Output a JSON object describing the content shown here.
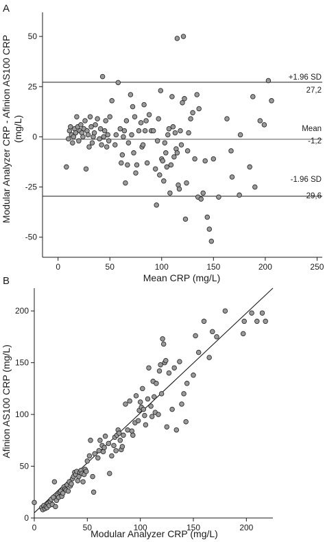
{
  "chart_data": [
    {
      "type": "scatter",
      "panel": "A",
      "xlabel": "Mean CRP (mg/L)",
      "ylabel": "Modular Analyzer CRP - Afinion AS100 CRP (mg/L)",
      "ylabel_lines": [
        "Modular Analyzer CRP - Afinion AS100 CRP",
        "(mg/L)"
      ],
      "xlim": [
        -15,
        255
      ],
      "ylim": [
        -60,
        62
      ],
      "xticks": [
        0,
        50,
        100,
        150,
        200,
        250
      ],
      "yticks": [
        50,
        25,
        0,
        -25,
        -50
      ],
      "grid": false,
      "reference_lines": [
        {
          "name": "+1.96 SD",
          "value": 27.2,
          "value_label": "27,2"
        },
        {
          "name": "Mean",
          "value": -1.2,
          "value_label": "-1,2"
        },
        {
          "name": "-1.96 SD",
          "value": -29.6,
          "value_label": "-29,6"
        }
      ],
      "points": [
        [
          8,
          -15
        ],
        [
          10,
          -1
        ],
        [
          11,
          3
        ],
        [
          12,
          5
        ],
        [
          13,
          1
        ],
        [
          14,
          -3
        ],
        [
          15,
          0
        ],
        [
          16,
          4
        ],
        [
          17,
          2
        ],
        [
          18,
          10
        ],
        [
          19,
          5
        ],
        [
          20,
          -2
        ],
        [
          21,
          3
        ],
        [
          22,
          6
        ],
        [
          23,
          2
        ],
        [
          24,
          0
        ],
        [
          25,
          4
        ],
        [
          26,
          8
        ],
        [
          27,
          -16
        ],
        [
          28,
          3
        ],
        [
          29,
          1
        ],
        [
          30,
          -5
        ],
        [
          31,
          10
        ],
        [
          32,
          5
        ],
        [
          33,
          -3
        ],
        [
          34,
          0
        ],
        [
          35,
          2
        ],
        [
          36,
          6
        ],
        [
          38,
          9
        ],
        [
          40,
          -1
        ],
        [
          41,
          4
        ],
        [
          42,
          -4
        ],
        [
          43,
          30
        ],
        [
          44,
          0
        ],
        [
          45,
          3
        ],
        [
          46,
          8
        ],
        [
          47,
          -5
        ],
        [
          48,
          1
        ],
        [
          49,
          -2
        ],
        [
          50,
          10
        ],
        [
          52,
          18
        ],
        [
          55,
          -4
        ],
        [
          56,
          1
        ],
        [
          58,
          27
        ],
        [
          60,
          4
        ],
        [
          61,
          -13
        ],
        [
          62,
          -9
        ],
        [
          63,
          0
        ],
        [
          64,
          3
        ],
        [
          65,
          -23
        ],
        [
          66,
          8
        ],
        [
          67,
          -14
        ],
        [
          68,
          -3
        ],
        [
          70,
          21
        ],
        [
          71,
          1
        ],
        [
          72,
          15
        ],
        [
          73,
          -8
        ],
        [
          74,
          10
        ],
        [
          75,
          -18
        ],
        [
          76,
          -14
        ],
        [
          78,
          3
        ],
        [
          80,
          7
        ],
        [
          81,
          -5
        ],
        [
          82,
          -4
        ],
        [
          83,
          16
        ],
        [
          84,
          3
        ],
        [
          85,
          8
        ],
        [
          86,
          -13
        ],
        [
          88,
          11
        ],
        [
          90,
          3
        ],
        [
          92,
          3
        ],
        [
          94,
          -16
        ],
        [
          95,
          -34
        ],
        [
          96,
          -2
        ],
        [
          97,
          9
        ],
        [
          98,
          -19
        ],
        [
          99,
          23
        ],
        [
          100,
          -11
        ],
        [
          101,
          -12
        ],
        [
          102,
          -22
        ],
        [
          103,
          -3
        ],
        [
          104,
          -8
        ],
        [
          105,
          -15
        ],
        [
          106,
          1
        ],
        [
          107,
          4
        ],
        [
          108,
          -28
        ],
        [
          109,
          -14
        ],
        [
          110,
          20
        ],
        [
          111,
          5
        ],
        [
          112,
          -10
        ],
        [
          113,
          2
        ],
        [
          114,
          -6
        ],
        [
          115,
          -8
        ],
        [
          116,
          -24
        ],
        [
          117,
          -26
        ],
        [
          118,
          3
        ],
        [
          119,
          -4
        ],
        [
          120,
          17
        ],
        [
          121,
          50
        ],
        [
          122,
          19
        ],
        [
          123,
          -41
        ],
        [
          124,
          -23
        ],
        [
          125,
          -7
        ],
        [
          126,
          2
        ],
        [
          128,
          9
        ],
        [
          130,
          12
        ],
        [
          132,
          -11
        ],
        [
          134,
          21
        ],
        [
          135,
          -30
        ],
        [
          136,
          14
        ],
        [
          138,
          -31
        ],
        [
          140,
          -28
        ],
        [
          142,
          -12
        ],
        [
          144,
          -40
        ],
        [
          146,
          -46
        ],
        [
          148,
          -52
        ],
        [
          150,
          -11
        ],
        [
          155,
          -30
        ],
        [
          163,
          9
        ],
        [
          167,
          -7
        ],
        [
          168,
          -20
        ],
        [
          175,
          -29
        ],
        [
          176,
          1
        ],
        [
          185,
          -15
        ],
        [
          188,
          20
        ],
        [
          190,
          -25
        ],
        [
          195,
          8
        ],
        [
          199,
          6
        ],
        [
          203,
          28
        ],
        [
          206,
          18
        ],
        [
          115,
          49
        ]
      ]
    },
    {
      "type": "scatter",
      "panel": "B",
      "xlabel": "Modular Analyzer CRP (mg/L)",
      "ylabel": "Afinion AS100 CRP (mg/L)",
      "xlim": [
        0,
        225
      ],
      "ylim": [
        0,
        222
      ],
      "xticks": [
        0,
        50,
        100,
        150,
        200
      ],
      "yticks": [
        0,
        50,
        100,
        150,
        200
      ],
      "grid": false,
      "fit_line": {
        "from": [
          0,
          5
        ],
        "to": [
          225,
          222
        ]
      },
      "points": [
        [
          0,
          15
        ],
        [
          7,
          10
        ],
        [
          8,
          8
        ],
        [
          9,
          12
        ],
        [
          10,
          9
        ],
        [
          11,
          11
        ],
        [
          12,
          10
        ],
        [
          13,
          14
        ],
        [
          14,
          12
        ],
        [
          15,
          16
        ],
        [
          16,
          18
        ],
        [
          17,
          13
        ],
        [
          18,
          20
        ],
        [
          19,
          35
        ],
        [
          20,
          11
        ],
        [
          21,
          17
        ],
        [
          22,
          22
        ],
        [
          23,
          20
        ],
        [
          24,
          25
        ],
        [
          25,
          26
        ],
        [
          26,
          21
        ],
        [
          27,
          24
        ],
        [
          28,
          30
        ],
        [
          29,
          28
        ],
        [
          30,
          27
        ],
        [
          31,
          32
        ],
        [
          32,
          26
        ],
        [
          33,
          35
        ],
        [
          34,
          31
        ],
        [
          35,
          33
        ],
        [
          36,
          38
        ],
        [
          37,
          40
        ],
        [
          38,
          44
        ],
        [
          39,
          42
        ],
        [
          40,
          45
        ],
        [
          41,
          36
        ],
        [
          42,
          40
        ],
        [
          43,
          44
        ],
        [
          44,
          46
        ],
        [
          45,
          43
        ],
        [
          46,
          35
        ],
        [
          47,
          42
        ],
        [
          48,
          47
        ],
        [
          49,
          45
        ],
        [
          50,
          55
        ],
        [
          52,
          60
        ],
        [
          53,
          75
        ],
        [
          55,
          40
        ],
        [
          56,
          25
        ],
        [
          57,
          62
        ],
        [
          60,
          58
        ],
        [
          61,
          65
        ],
        [
          62,
          75
        ],
        [
          64,
          70
        ],
        [
          65,
          64
        ],
        [
          66,
          68
        ],
        [
          67,
          79
        ],
        [
          70,
          72
        ],
        [
          71,
          43
        ],
        [
          73,
          60
        ],
        [
          75,
          70
        ],
        [
          76,
          78
        ],
        [
          77,
          65
        ],
        [
          78,
          80
        ],
        [
          79,
          85
        ],
        [
          80,
          82
        ],
        [
          81,
          75
        ],
        [
          82,
          66
        ],
        [
          83,
          69
        ],
        [
          84,
          80
        ],
        [
          86,
          110
        ],
        [
          88,
          85
        ],
        [
          90,
          113
        ],
        [
          92,
          84
        ],
        [
          93,
          80
        ],
        [
          95,
          92
        ],
        [
          96,
          118
        ],
        [
          98,
          94
        ],
        [
          99,
          104
        ],
        [
          100,
          112
        ],
        [
          101,
          107
        ],
        [
          102,
          125
        ],
        [
          103,
          105
        ],
        [
          104,
          99
        ],
        [
          105,
          90
        ],
        [
          107,
          115
        ],
        [
          108,
          145
        ],
        [
          110,
          108
        ],
        [
          111,
          98
        ],
        [
          112,
          132
        ],
        [
          113,
          117
        ],
        [
          114,
          102
        ],
        [
          115,
          130
        ],
        [
          117,
          100
        ],
        [
          118,
          142
        ],
        [
          119,
          148
        ],
        [
          120,
          120
        ],
        [
          121,
          173
        ],
        [
          122,
          168
        ],
        [
          123,
          150
        ],
        [
          124,
          152
        ],
        [
          125,
          88
        ],
        [
          127,
          140
        ],
        [
          130,
          105
        ],
        [
          132,
          145
        ],
        [
          134,
          85
        ],
        [
          137,
          151
        ],
        [
          139,
          110
        ],
        [
          141,
          120
        ],
        [
          143,
          93
        ],
        [
          144,
          130
        ],
        [
          150,
          138
        ],
        [
          152,
          176
        ],
        [
          155,
          160
        ],
        [
          160,
          190
        ],
        [
          165,
          155
        ],
        [
          168,
          180
        ],
        [
          172,
          175
        ],
        [
          180,
          200
        ],
        [
          197,
          178
        ],
        [
          198,
          190
        ],
        [
          205,
          198
        ],
        [
          210,
          190
        ],
        [
          215,
          198
        ],
        [
          218,
          190
        ]
      ]
    }
  ],
  "panels": {
    "a": {
      "letter": "A",
      "ylabel_line1": "Modular Analyzer CRP - Afinion AS100 CRP",
      "ylabel_line2": "(mg/L)",
      "xlabel": "Mean CRP (mg/L)",
      "upper_name": "+1.96 SD",
      "upper_value": "27,2",
      "mean_name": "Mean",
      "mean_value": "-1,2",
      "lower_name": "-1.96 SD",
      "lower_value": "-29,6"
    },
    "b": {
      "letter": "B",
      "ylabel": "Afinion AS100 CRP (mg/L)",
      "xlabel": "Modular Analyzer CRP (mg/L)"
    }
  }
}
